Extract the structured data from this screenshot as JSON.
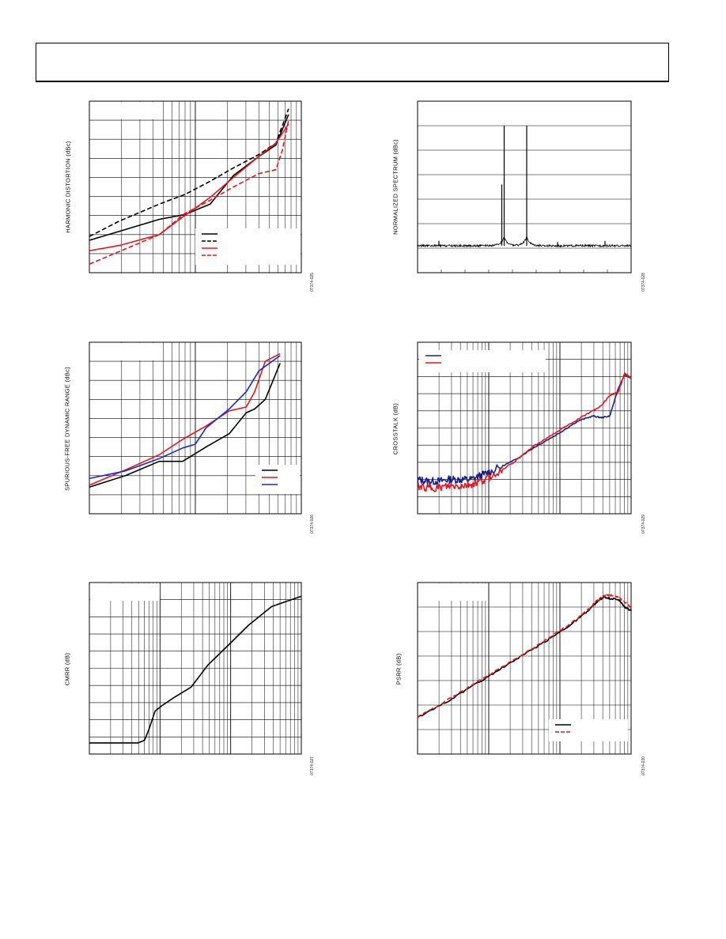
{
  "page": {
    "header_text": ""
  },
  "charts": [
    {
      "id": "c1",
      "ylabel": "HARMONIC DISTORTION (dBc)",
      "fig": "07374-025"
    },
    {
      "id": "c2",
      "ylabel": "NORMALIZED SPECTRUM (dBc)",
      "fig": "07374-028"
    },
    {
      "id": "c3",
      "ylabel": "SPURIOUS-FREE DYNAMIC RANGE (dBc)",
      "fig": "07374-026"
    },
    {
      "id": "c4",
      "ylabel": "CROSSTALK (dB)",
      "fig": "07374-029"
    },
    {
      "id": "c5",
      "ylabel": "CMRR (dB)",
      "fig": "07374-027"
    },
    {
      "id": "c6",
      "ylabel": "PSRR (dB)",
      "fig": "07374-030"
    }
  ],
  "chart_data": [
    {
      "type": "line",
      "xscale": "log",
      "x_decades": 2,
      "ydiv": 9,
      "xlim": [
        0,
        1
      ],
      "ylim": [
        0,
        9
      ],
      "series": [
        {
          "color": "#000000",
          "dash": false,
          "x": [
            0,
            0.15,
            0.33,
            0.45,
            0.57,
            0.68,
            0.8,
            0.88,
            0.94
          ],
          "y": [
            1.7,
            2.2,
            2.8,
            3.05,
            3.6,
            5.1,
            6.1,
            6.7,
            8.3
          ]
        },
        {
          "color": "#000000",
          "dash": true,
          "x": [
            0,
            0.14,
            0.33,
            0.45,
            0.57,
            0.68,
            0.8,
            0.88,
            0.94
          ],
          "y": [
            1.9,
            2.7,
            3.6,
            4.1,
            4.8,
            5.5,
            6.2,
            6.8,
            8.6
          ]
        },
        {
          "color": "#e8141c",
          "dash": false,
          "x": [
            0,
            0.15,
            0.33,
            0.45,
            0.57,
            0.68,
            0.8,
            0.88,
            0.94
          ],
          "y": [
            1.15,
            1.45,
            2.0,
            3.0,
            3.95,
            5.0,
            6.1,
            6.8,
            7.8
          ]
        },
        {
          "color": "#e8141c",
          "dash": true,
          "x": [
            0,
            0.15,
            0.33,
            0.45,
            0.57,
            0.68,
            0.8,
            0.88,
            0.91,
            0.94
          ],
          "y": [
            0.45,
            1.15,
            2.0,
            3.1,
            3.8,
            4.5,
            5.2,
            5.4,
            6.4,
            8.0
          ]
        }
      ],
      "legend": {
        "position": "bottom-right",
        "entries": 4
      },
      "note_box": "top-left"
    },
    {
      "type": "spectrum",
      "xscale": "linear",
      "xdiv": 9,
      "ydiv": 7,
      "xlim": [
        0,
        9
      ],
      "ylim": [
        0,
        7
      ],
      "noise_floor": 1.1,
      "peaks": [
        {
          "x": 3.65,
          "y": 6.0
        },
        {
          "x": 3.55,
          "y": 3.6
        },
        {
          "x": 4.6,
          "y": 6.0
        },
        {
          "x": 0.9,
          "y": 1.3
        },
        {
          "x": 5.9,
          "y": 1.25
        },
        {
          "x": 7.9,
          "y": 1.3
        }
      ],
      "skirts": [
        3.65,
        4.6
      ]
    },
    {
      "type": "line",
      "xscale": "log",
      "x_decades": 2,
      "ydiv": 9,
      "xlim": [
        0,
        1
      ],
      "ylim": [
        0,
        9
      ],
      "series": [
        {
          "color": "#000000",
          "dash": false,
          "x": [
            0,
            0.17,
            0.33,
            0.44,
            0.55,
            0.66,
            0.74,
            0.78,
            0.83,
            0.9
          ],
          "y": [
            1.4,
            2.0,
            2.75,
            2.75,
            3.5,
            4.2,
            5.3,
            5.5,
            6.0,
            7.9
          ]
        },
        {
          "color": "#e8141c",
          "dash": false,
          "x": [
            0,
            0.17,
            0.33,
            0.44,
            0.55,
            0.66,
            0.74,
            0.78,
            0.83,
            0.9
          ],
          "y": [
            1.5,
            2.3,
            3.1,
            3.9,
            4.6,
            5.4,
            5.6,
            6.4,
            8.0,
            8.4
          ]
        },
        {
          "color": "#1428d6",
          "dash": false,
          "x": [
            0,
            0.17,
            0.33,
            0.44,
            0.5,
            0.55,
            0.66,
            0.74,
            0.8,
            0.9
          ],
          "y": [
            1.85,
            2.25,
            2.9,
            3.45,
            3.65,
            4.5,
            5.5,
            6.4,
            7.5,
            8.3
          ]
        }
      ],
      "legend": {
        "position": "bottom-right",
        "entries": 3
      },
      "note_box": "top-left"
    },
    {
      "type": "line",
      "xscale": "log",
      "x_decades": 3,
      "ydiv": 10,
      "xlim": [
        0,
        1
      ],
      "ylim": [
        0,
        10
      ],
      "series": [
        {
          "color": "#15208a",
          "dash": false,
          "noisy": true,
          "x": [
            0,
            0.05,
            0.1,
            0.15,
            0.2,
            0.25,
            0.3,
            0.35,
            0.45,
            0.55,
            0.65,
            0.75,
            0.82,
            0.86,
            0.9,
            0.94,
            0.97,
            1.0
          ],
          "y": [
            2.0,
            1.9,
            1.9,
            2.0,
            2.0,
            2.0,
            2.25,
            2.5,
            3.1,
            3.9,
            4.6,
            5.4,
            5.7,
            5.6,
            5.7,
            7.3,
            8.1,
            7.9
          ]
        },
        {
          "color": "#e8141c",
          "dash": false,
          "noisy": true,
          "x": [
            0,
            0.05,
            0.1,
            0.15,
            0.2,
            0.25,
            0.3,
            0.35,
            0.45,
            0.55,
            0.65,
            0.75,
            0.82,
            0.86,
            0.9,
            0.94,
            0.97,
            1.0
          ],
          "y": [
            1.6,
            1.5,
            1.5,
            1.6,
            1.6,
            1.7,
            1.9,
            2.2,
            3.0,
            4.0,
            4.75,
            5.5,
            6.0,
            6.3,
            6.9,
            7.1,
            8.2,
            7.9
          ]
        }
      ],
      "legend": {
        "position": "top-left",
        "entries": 2
      }
    },
    {
      "type": "line",
      "xscale": "log",
      "x_decades": 3,
      "ydiv": 10,
      "xlim": [
        0,
        1
      ],
      "ylim": [
        0,
        10
      ],
      "series": [
        {
          "color": "#000000",
          "dash": false,
          "x": [
            0,
            0.23,
            0.26,
            0.28,
            0.31,
            0.34,
            0.4,
            0.48,
            0.56,
            0.66,
            0.75,
            0.86,
            1.0
          ],
          "y": [
            0.65,
            0.65,
            0.8,
            1.4,
            2.5,
            2.8,
            3.3,
            3.9,
            5.2,
            6.4,
            7.5,
            8.6,
            9.2
          ]
        }
      ],
      "note_box": "top-left"
    },
    {
      "type": "line",
      "xscale": "log",
      "x_decades": 3,
      "ydiv": 7,
      "xlim": [
        0,
        1
      ],
      "ylim": [
        0,
        7
      ],
      "series": [
        {
          "color": "#000000",
          "dash": false,
          "noisy": true,
          "x": [
            0,
            0.15,
            0.3,
            0.45,
            0.6,
            0.72,
            0.8,
            0.84,
            0.87,
            0.9,
            0.94,
            0.97,
            1.0
          ],
          "y": [
            1.5,
            2.2,
            3.0,
            3.8,
            4.6,
            5.3,
            5.85,
            6.2,
            6.4,
            6.35,
            6.3,
            6.0,
            5.85
          ]
        },
        {
          "color": "#e8141c",
          "dash": true,
          "noisy": true,
          "x": [
            0,
            0.15,
            0.3,
            0.45,
            0.6,
            0.72,
            0.8,
            0.84,
            0.87,
            0.9,
            0.94,
            0.97,
            1.0
          ],
          "y": [
            1.5,
            2.25,
            3.05,
            3.85,
            4.65,
            5.35,
            5.9,
            6.25,
            6.45,
            6.5,
            6.4,
            6.2,
            6.0
          ]
        }
      ],
      "legend": {
        "position": "bottom-right",
        "entries": 2
      },
      "note_box": "top-left"
    }
  ]
}
